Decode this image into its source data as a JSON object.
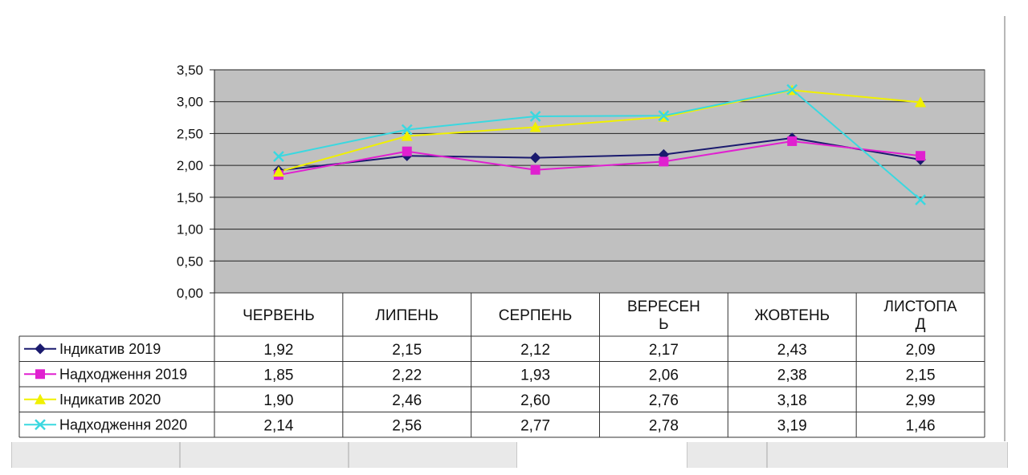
{
  "chart_data": {
    "type": "line",
    "categories": [
      [
        "ЧЕРВЕНЬ"
      ],
      [
        "ЛИПЕНЬ"
      ],
      [
        "СЕРПЕНЬ"
      ],
      [
        "ВЕРЕСЕН",
        "Ь"
      ],
      [
        "ЖОВТЕНЬ"
      ],
      [
        "ЛИСТОПА",
        "Д"
      ]
    ],
    "yticks": [
      "0,00",
      "0,50",
      "1,00",
      "1,50",
      "2,00",
      "2,50",
      "3,00",
      "3,50"
    ],
    "ylim": [
      0,
      3.5
    ],
    "grid": true,
    "plot_background": "#c0c0c0",
    "series": [
      {
        "name": "Індикатив 2019",
        "color": "#1a1a6e",
        "marker": "diamond",
        "values": [
          1.92,
          2.15,
          2.12,
          2.17,
          2.43,
          2.09
        ],
        "labels": [
          "1,92",
          "2,15",
          "2,12",
          "2,17",
          "2,43",
          "2,09"
        ]
      },
      {
        "name": "Надходження 2019",
        "color": "#e020d0",
        "marker": "square",
        "values": [
          1.85,
          2.22,
          1.93,
          2.06,
          2.38,
          2.15
        ],
        "labels": [
          "1,85",
          "2,22",
          "1,93",
          "2,06",
          "2,38",
          "2,15"
        ]
      },
      {
        "name": "Індикатив 2020",
        "color": "#f0f000",
        "marker": "triangle",
        "values": [
          1.9,
          2.46,
          2.6,
          2.76,
          3.18,
          2.99
        ],
        "labels": [
          "1,90",
          "2,46",
          "2,60",
          "2,76",
          "3,18",
          "2,99"
        ]
      },
      {
        "name": "Надходження 2020",
        "color": "#3ad8e0",
        "marker": "x",
        "values": [
          2.14,
          2.56,
          2.77,
          2.78,
          3.19,
          1.46
        ],
        "labels": [
          "2,14",
          "2,56",
          "2,77",
          "2,78",
          "3,19",
          "1,46"
        ]
      }
    ]
  }
}
